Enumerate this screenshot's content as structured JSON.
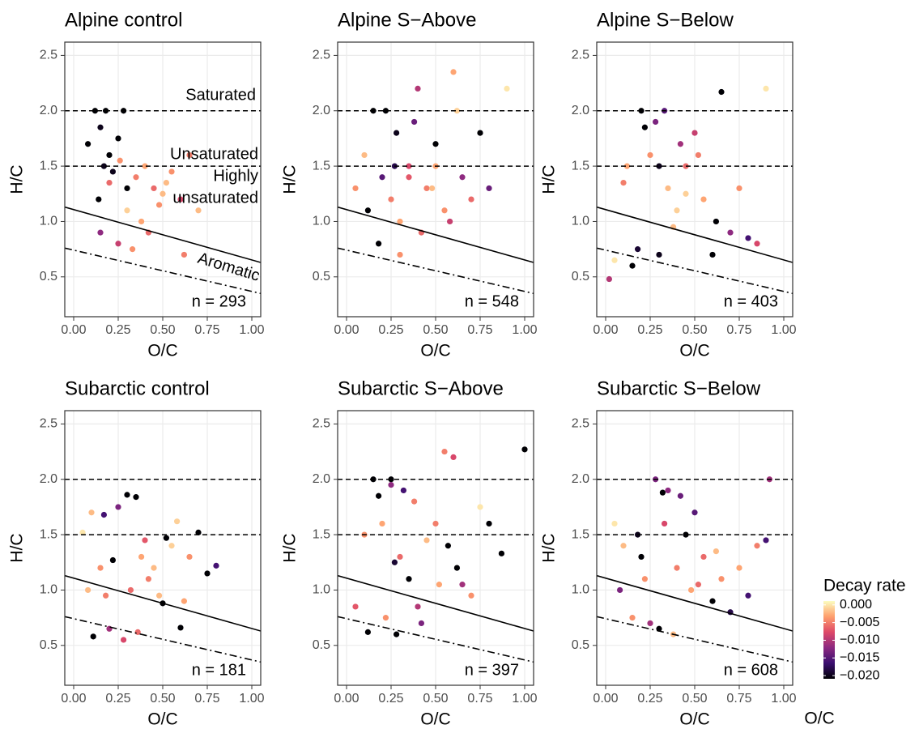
{
  "chart_data": [
    {
      "type": "scatter",
      "title": "Alpine control",
      "x_label": "O/C",
      "y_label": "H/C",
      "xlim": [
        -0.05,
        1.05
      ],
      "ylim": [
        0.14,
        2.62
      ],
      "xticks": [
        {
          "value": 0,
          "label": "0.00"
        },
        {
          "value": 0.25,
          "label": "0.25"
        },
        {
          "value": 0.5,
          "label": "0.50"
        },
        {
          "value": 0.75,
          "label": "0.75"
        },
        {
          "value": 1,
          "label": "1.00"
        }
      ],
      "yticks": [
        0.5,
        {
          "value": 1,
          "label": "1.0"
        },
        1.5,
        {
          "value": 2,
          "label": "2.0"
        },
        2.5
      ],
      "hlines": [
        2,
        1.5
      ],
      "solid_line": {
        "x": [
          -0.05,
          1.05
        ],
        "y": [
          1.13,
          0.63
        ]
      },
      "dashdot_line": {
        "x": [
          -0.05,
          1.05
        ],
        "y": [
          0.76,
          0.35
        ]
      },
      "annotation": "n = 293",
      "region_labels": [
        "Saturated",
        "Unsaturated",
        "Highly",
        "unsaturated",
        "Aromatic"
      ],
      "x": [
        0.08,
        0.12,
        0.15,
        0.18,
        0.2,
        0.22,
        0.25,
        0.28,
        0.3,
        0.17,
        0.14,
        0.2,
        0.26,
        0.35,
        0.4,
        0.45,
        0.5,
        0.55,
        0.6,
        0.65,
        0.3,
        0.38,
        0.42,
        0.48,
        0.52,
        0.25,
        0.15,
        0.62,
        0.7,
        0.33
      ],
      "y": [
        1.7,
        2.0,
        1.85,
        2.0,
        1.6,
        1.45,
        1.75,
        2.0,
        1.3,
        1.5,
        1.2,
        1.35,
        1.55,
        1.4,
        1.5,
        1.3,
        1.25,
        1.45,
        1.2,
        1.6,
        1.1,
        1.0,
        0.9,
        1.15,
        1.35,
        0.8,
        0.9,
        0.7,
        1.1,
        0.75
      ],
      "decay": [
        -0.021,
        -0.021,
        -0.02,
        -0.021,
        -0.021,
        -0.02,
        -0.021,
        -0.021,
        -0.021,
        -0.02,
        -0.021,
        -0.006,
        -0.004,
        -0.005,
        -0.003,
        -0.006,
        -0.002,
        -0.004,
        -0.008,
        -0.005,
        -0.001,
        -0.003,
        -0.006,
        -0.004,
        -0.002,
        -0.009,
        -0.012,
        -0.005,
        -0.002,
        -0.004
      ]
    },
    {
      "type": "scatter",
      "title": "Alpine S−Above",
      "x_label": "O/C",
      "y_label": "H/C",
      "xlim": [
        -0.05,
        1.05
      ],
      "ylim": [
        0.14,
        2.62
      ],
      "xticks": [
        {
          "value": 0,
          "label": "0.00"
        },
        {
          "value": 0.25,
          "label": "0.25"
        },
        {
          "value": 0.5,
          "label": "0.50"
        },
        {
          "value": 0.75,
          "label": "0.75"
        },
        {
          "value": 1,
          "label": "1.00"
        }
      ],
      "yticks": [
        0.5,
        {
          "value": 1,
          "label": "1.0"
        },
        1.5,
        {
          "value": 2,
          "label": "2.0"
        },
        2.5
      ],
      "hlines": [
        2,
        1.5
      ],
      "solid_line": {
        "x": [
          -0.05,
          1.05
        ],
        "y": [
          1.13,
          0.63
        ]
      },
      "dashdot_line": {
        "x": [
          -0.05,
          1.05
        ],
        "y": [
          0.76,
          0.35
        ]
      },
      "annotation": "n = 548",
      "x": [
        0.05,
        0.1,
        0.15,
        0.2,
        0.22,
        0.25,
        0.28,
        0.3,
        0.35,
        0.4,
        0.45,
        0.5,
        0.55,
        0.6,
        0.65,
        0.7,
        0.75,
        0.8,
        0.18,
        0.3,
        0.42,
        0.5,
        0.58,
        0.62,
        0.9,
        0.12,
        0.27,
        0.38,
        0.48,
        0.35
      ],
      "y": [
        1.3,
        1.6,
        2.0,
        1.4,
        2.0,
        1.2,
        1.8,
        1.0,
        1.5,
        2.2,
        1.3,
        1.7,
        1.1,
        2.35,
        1.4,
        1.2,
        1.8,
        1.3,
        0.8,
        0.7,
        0.9,
        1.5,
        1.0,
        2.0,
        2.2,
        1.1,
        1.5,
        1.9,
        1.3,
        1.4
      ],
      "decay": [
        -0.004,
        -0.002,
        -0.021,
        -0.015,
        -0.021,
        -0.005,
        -0.02,
        -0.003,
        -0.008,
        -0.01,
        -0.005,
        -0.021,
        -0.004,
        -0.003,
        -0.012,
        -0.006,
        -0.021,
        -0.014,
        -0.021,
        -0.004,
        -0.006,
        -0.003,
        -0.009,
        -0.001,
        0,
        -0.021,
        -0.018,
        -0.014,
        -0.002,
        -0.007
      ]
    },
    {
      "type": "scatter",
      "title": "Alpine S−Below",
      "x_label": "O/C",
      "y_label": "H/C",
      "xlim": [
        -0.05,
        1.05
      ],
      "ylim": [
        0.14,
        2.62
      ],
      "xticks": [
        {
          "value": 0,
          "label": "0.00"
        },
        {
          "value": 0.25,
          "label": "0.25"
        },
        {
          "value": 0.5,
          "label": "0.50"
        },
        {
          "value": 0.75,
          "label": "0.75"
        },
        {
          "value": 1,
          "label": "1.00"
        }
      ],
      "yticks": [
        0.5,
        {
          "value": 1,
          "label": "1.0"
        },
        1.5,
        {
          "value": 2,
          "label": "2.0"
        },
        2.5
      ],
      "hlines": [
        2,
        1.5
      ],
      "solid_line": {
        "x": [
          -0.05,
          1.05
        ],
        "y": [
          1.13,
          0.63
        ]
      },
      "dashdot_line": {
        "x": [
          -0.05,
          1.05
        ],
        "y": [
          0.76,
          0.35
        ]
      },
      "annotation": "n = 403",
      "x": [
        0.02,
        0.05,
        0.1,
        0.15,
        0.2,
        0.22,
        0.25,
        0.3,
        0.33,
        0.35,
        0.4,
        0.45,
        0.5,
        0.55,
        0.6,
        0.65,
        0.7,
        0.75,
        0.8,
        0.85,
        0.9,
        0.18,
        0.28,
        0.38,
        0.45,
        0.52,
        0.62,
        0.12,
        0.3,
        0.42
      ],
      "y": [
        0.48,
        0.65,
        1.35,
        0.6,
        2.0,
        1.85,
        1.6,
        0.7,
        2.0,
        1.3,
        1.1,
        1.5,
        1.8,
        1.2,
        0.7,
        2.17,
        0.9,
        1.3,
        0.85,
        0.8,
        2.2,
        0.75,
        1.9,
        0.95,
        1.25,
        1.6,
        1.0,
        1.5,
        1.5,
        1.7
      ],
      "decay": [
        -0.01,
        0,
        -0.005,
        -0.021,
        -0.021,
        -0.021,
        -0.004,
        -0.02,
        -0.015,
        -0.002,
        -0.001,
        -0.006,
        -0.009,
        -0.003,
        -0.021,
        -0.021,
        -0.012,
        -0.004,
        -0.016,
        -0.008,
        0,
        -0.019,
        -0.013,
        -0.002,
        -0.001,
        -0.005,
        -0.021,
        -0.003,
        -0.02,
        -0.011
      ]
    },
    {
      "type": "scatter",
      "title": "Subarctic control",
      "x_label": "O/C",
      "y_label": "H/C",
      "xlim": [
        -0.05,
        1.05
      ],
      "ylim": [
        0.14,
        2.62
      ],
      "xticks": [
        {
          "value": 0,
          "label": "0.00"
        },
        {
          "value": 0.25,
          "label": "0.25"
        },
        {
          "value": 0.5,
          "label": "0.50"
        },
        {
          "value": 0.75,
          "label": "0.75"
        },
        {
          "value": 1,
          "label": "1.00"
        }
      ],
      "yticks": [
        0.5,
        {
          "value": 1,
          "label": "1.0"
        },
        1.5,
        {
          "value": 2,
          "label": "2.0"
        },
        2.5
      ],
      "hlines": [
        2,
        1.5
      ],
      "solid_line": {
        "x": [
          -0.05,
          1.05
        ],
        "y": [
          1.13,
          0.63
        ]
      },
      "dashdot_line": {
        "x": [
          -0.05,
          1.05
        ],
        "y": [
          0.76,
          0.35
        ]
      },
      "annotation": "n = 181",
      "x": [
        0.05,
        0.1,
        0.11,
        0.15,
        0.18,
        0.2,
        0.22,
        0.25,
        0.3,
        0.32,
        0.35,
        0.38,
        0.4,
        0.45,
        0.5,
        0.52,
        0.55,
        0.6,
        0.62,
        0.65,
        0.7,
        0.75,
        0.8,
        0.28,
        0.42,
        0.48,
        0.58,
        0.36,
        0.17,
        0.08
      ],
      "y": [
        1.52,
        1.7,
        0.58,
        1.2,
        0.95,
        0.65,
        1.27,
        1.75,
        1.86,
        1.0,
        1.84,
        1.3,
        1.45,
        1.2,
        0.88,
        1.47,
        1.4,
        0.66,
        0.9,
        1.3,
        1.52,
        1.15,
        1.22,
        0.55,
        1.1,
        0.95,
        1.62,
        0.62,
        1.68,
        1.0
      ],
      "decay": [
        0,
        -0.002,
        -0.021,
        -0.004,
        -0.005,
        -0.011,
        -0.021,
        -0.013,
        -0.021,
        -0.006,
        -0.021,
        -0.003,
        -0.007,
        -0.002,
        -0.021,
        -0.021,
        -0.001,
        -0.021,
        -0.003,
        -0.004,
        -0.021,
        -0.021,
        -0.016,
        -0.008,
        -0.005,
        -0.002,
        -0.001,
        -0.006,
        -0.016,
        -0.002
      ]
    },
    {
      "type": "scatter",
      "title": "Subarctic S−Above",
      "x_label": "O/C",
      "y_label": "H/C",
      "xlim": [
        -0.05,
        1.05
      ],
      "ylim": [
        0.14,
        2.62
      ],
      "xticks": [
        {
          "value": 0,
          "label": "0.00"
        },
        {
          "value": 0.25,
          "label": "0.25"
        },
        {
          "value": 0.5,
          "label": "0.50"
        },
        {
          "value": 0.75,
          "label": "0.75"
        },
        {
          "value": 1,
          "label": "1.00"
        }
      ],
      "yticks": [
        0.5,
        {
          "value": 1,
          "label": "1.0"
        },
        1.5,
        {
          "value": 2,
          "label": "2.0"
        },
        2.5
      ],
      "hlines": [
        2,
        1.5
      ],
      "solid_line": {
        "x": [
          -0.05,
          1.05
        ],
        "y": [
          1.13,
          0.63
        ]
      },
      "dashdot_line": {
        "x": [
          -0.05,
          1.05
        ],
        "y": [
          0.76,
          0.35
        ]
      },
      "annotation": "n = 397",
      "x": [
        0.05,
        0.1,
        0.15,
        0.18,
        0.2,
        0.22,
        0.25,
        0.28,
        0.3,
        0.32,
        0.35,
        0.4,
        0.45,
        0.5,
        0.55,
        0.6,
        0.62,
        0.65,
        0.7,
        0.75,
        0.8,
        0.87,
        1.0,
        0.12,
        0.27,
        0.42,
        0.52,
        0.38,
        0.25,
        0.57
      ],
      "y": [
        0.85,
        1.5,
        2.0,
        1.85,
        1.6,
        0.75,
        2.0,
        0.6,
        1.3,
        1.9,
        1.1,
        0.85,
        1.45,
        1.6,
        2.25,
        2.2,
        1.2,
        1.05,
        0.95,
        1.75,
        1.6,
        1.33,
        2.27,
        0.62,
        1.25,
        0.7,
        1.05,
        1.8,
        1.95,
        1.4
      ],
      "decay": [
        -0.007,
        -0.004,
        -0.021,
        -0.021,
        -0.003,
        -0.004,
        -0.021,
        -0.021,
        -0.006,
        -0.016,
        -0.021,
        -0.01,
        -0.002,
        -0.005,
        -0.005,
        -0.008,
        -0.021,
        -0.011,
        -0.004,
        0,
        -0.021,
        -0.021,
        -0.021,
        -0.021,
        -0.019,
        -0.013,
        -0.003,
        -0.005,
        -0.012,
        -0.021
      ]
    },
    {
      "type": "scatter",
      "title": "Subarctic S−Below",
      "x_label": "O/C",
      "y_label": "H/C",
      "xlim": [
        -0.05,
        1.05
      ],
      "ylim": [
        0.14,
        2.62
      ],
      "xticks": [
        {
          "value": 0,
          "label": "0.00"
        },
        {
          "value": 0.25,
          "label": "0.25"
        },
        {
          "value": 0.5,
          "label": "0.50"
        },
        {
          "value": 0.75,
          "label": "0.75"
        },
        {
          "value": 1,
          "label": "1.00"
        }
      ],
      "yticks": [
        0.5,
        {
          "value": 1,
          "label": "1.0"
        },
        1.5,
        {
          "value": 2,
          "label": "2.0"
        },
        2.5
      ],
      "hlines": [
        2,
        1.5
      ],
      "solid_line": {
        "x": [
          -0.05,
          1.05
        ],
        "y": [
          1.13,
          0.63
        ]
      },
      "dashdot_line": {
        "x": [
          -0.05,
          1.05
        ],
        "y": [
          0.76,
          0.35
        ]
      },
      "annotation": "n = 608",
      "x": [
        0.05,
        0.08,
        0.1,
        0.15,
        0.2,
        0.22,
        0.25,
        0.28,
        0.3,
        0.33,
        0.35,
        0.4,
        0.45,
        0.48,
        0.5,
        0.55,
        0.6,
        0.65,
        0.7,
        0.75,
        0.8,
        0.85,
        0.9,
        0.92,
        0.18,
        0.38,
        0.42,
        0.52,
        0.62,
        0.32
      ],
      "y": [
        1.6,
        1.0,
        1.4,
        0.75,
        1.3,
        1.1,
        0.7,
        2.0,
        0.65,
        1.6,
        1.9,
        1.2,
        1.5,
        1.0,
        1.7,
        1.3,
        0.9,
        1.1,
        0.8,
        1.2,
        0.95,
        1.4,
        1.45,
        2.0,
        1.5,
        0.6,
        1.85,
        1.05,
        1.35,
        1.88
      ],
      "decay": [
        0,
        -0.013,
        -0.002,
        -0.004,
        -0.021,
        -0.004,
        -0.011,
        -0.013,
        -0.021,
        -0.008,
        -0.012,
        -0.005,
        -0.021,
        -0.003,
        -0.015,
        -0.006,
        -0.021,
        -0.004,
        -0.018,
        -0.003,
        -0.016,
        -0.005,
        -0.016,
        -0.011,
        -0.02,
        -0.002,
        -0.014,
        -0.006,
        -0.002,
        -0.021
      ]
    }
  ],
  "colorbar": {
    "title": "Decay rate",
    "lim": [
      -0.0209,
      0.0011
    ],
    "colors": [
      "#000004",
      "#3b0f70",
      "#8c2981",
      "#de4968",
      "#fe9f6d",
      "#fcfdbf"
    ],
    "ticks": [
      {
        "value": 0,
        "label": "0.000"
      },
      {
        "value": -0.005,
        "label": "−0.005"
      },
      {
        "value": -0.01,
        "label": "−0.010"
      },
      {
        "value": -0.015,
        "label": "−0.015"
      },
      {
        "value": -0.02,
        "label": "−0.020"
      }
    ]
  },
  "extra_axis_label": "O/C"
}
